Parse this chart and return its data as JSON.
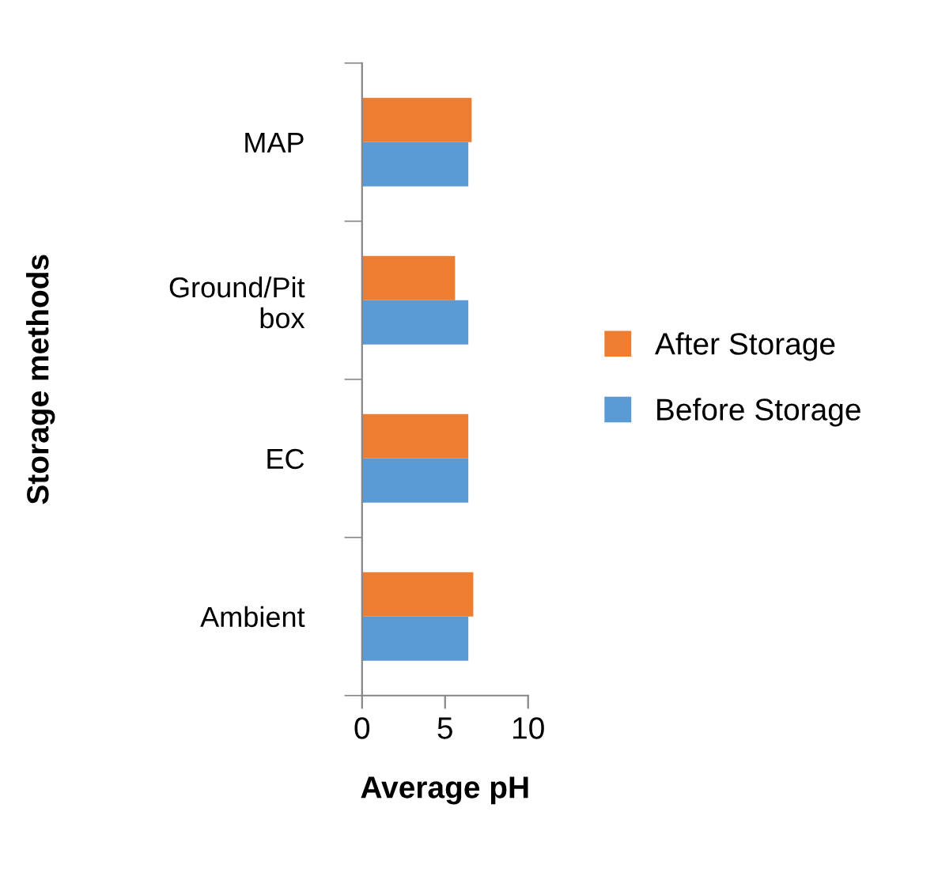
{
  "chart_data": {
    "type": "bar",
    "orientation": "horizontal",
    "xlabel": "Average pH",
    "ylabel": "Storage methods",
    "categories": [
      "MAP",
      "Ground/Pit box",
      "EC",
      "Ambient"
    ],
    "series": [
      {
        "name": "After Storage",
        "color": "#ed7d31",
        "values": [
          6.6,
          5.6,
          6.4,
          6.7
        ]
      },
      {
        "name": "Before Storage",
        "color": "#5b9bd5",
        "values": [
          6.4,
          6.4,
          6.4,
          6.4
        ]
      }
    ],
    "xlim": [
      0,
      10
    ],
    "xticks": [
      0,
      5,
      10
    ],
    "grid": false,
    "legend": "right"
  }
}
